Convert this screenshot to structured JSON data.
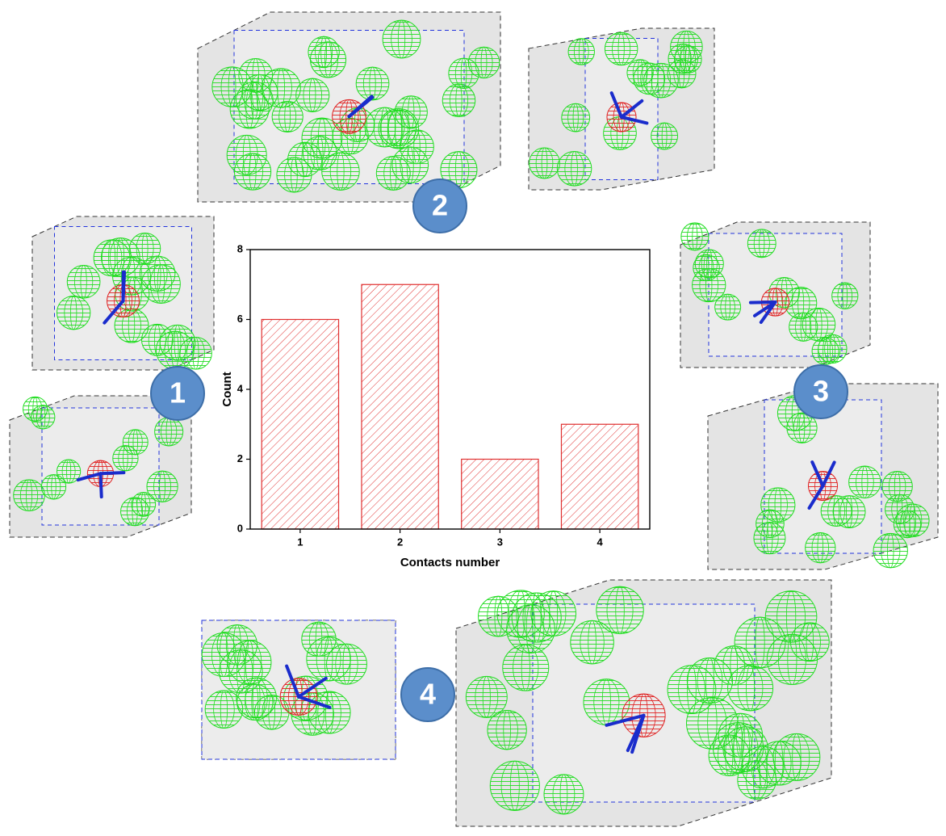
{
  "chart_data": {
    "type": "bar",
    "categories": [
      "1",
      "2",
      "3",
      "4"
    ],
    "values": [
      6,
      7,
      2,
      3
    ],
    "color": "#e03030",
    "xlabel": "Contacts number",
    "ylabel": "Count",
    "ylim": [
      0,
      8
    ],
    "yticks": [
      0,
      2,
      4,
      6,
      8
    ]
  }
}
